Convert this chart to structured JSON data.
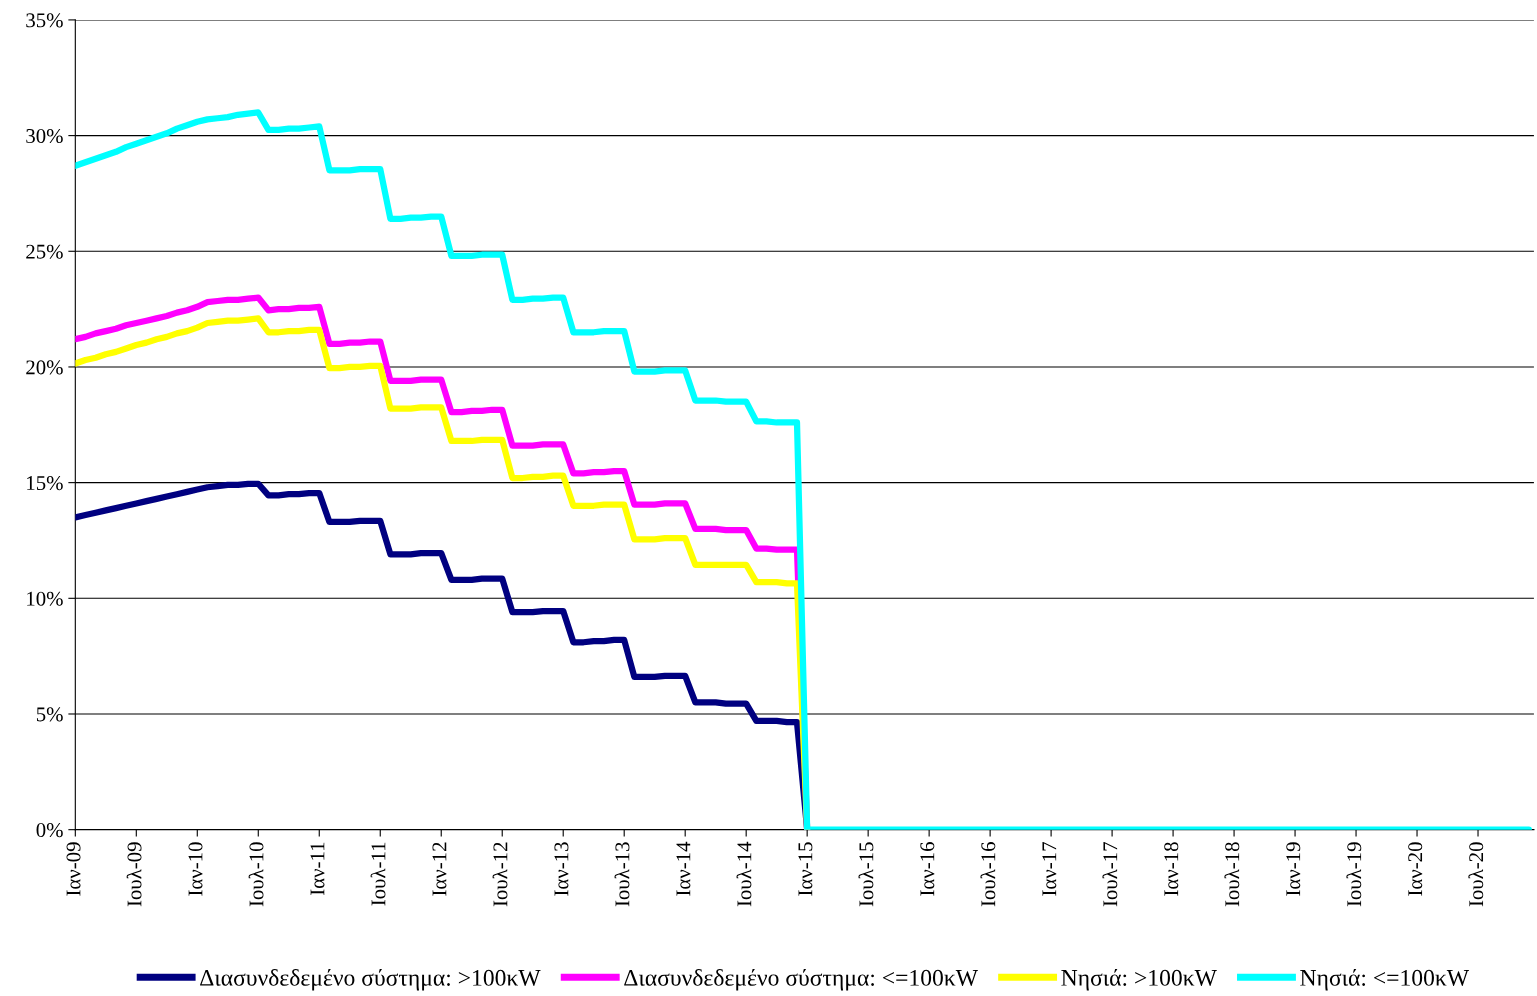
{
  "chart_data": {
    "type": "line",
    "categories": [
      "Ιαν-09",
      null,
      null,
      null,
      null,
      null,
      "Ιουλ-09",
      null,
      null,
      null,
      null,
      null,
      "Ιαν-10",
      null,
      null,
      null,
      null,
      null,
      "Ιουλ-10",
      null,
      null,
      null,
      null,
      null,
      "Ιαν-11",
      null,
      null,
      null,
      null,
      null,
      "Ιουλ-11",
      null,
      null,
      null,
      null,
      null,
      "Ιαν-12",
      null,
      null,
      null,
      null,
      null,
      "Ιουλ-12",
      null,
      null,
      null,
      null,
      null,
      "Ιαν-13",
      null,
      null,
      null,
      null,
      null,
      "Ιουλ-13",
      null,
      null,
      null,
      null,
      null,
      "Ιαν-14",
      null,
      null,
      null,
      null,
      null,
      "Ιουλ-14",
      null,
      null,
      null,
      null,
      null,
      "Ιαν-15",
      null,
      null,
      null,
      null,
      null,
      "Ιουλ-15",
      null,
      null,
      null,
      null,
      null,
      "Ιαν-16",
      null,
      null,
      null,
      null,
      null,
      "Ιουλ-16",
      null,
      null,
      null,
      null,
      null,
      "Ιαν-17",
      null,
      null,
      null,
      null,
      null,
      "Ιουλ-17",
      null,
      null,
      null,
      null,
      null,
      "Ιαν-18",
      null,
      null,
      null,
      null,
      null,
      "Ιουλ-18",
      null,
      null,
      null,
      null,
      null,
      "Ιαν-19",
      null,
      null,
      null,
      null,
      null,
      "Ιουλ-19",
      null,
      null,
      null,
      null,
      null,
      "Ιαν-20",
      null,
      null,
      null,
      null,
      null,
      "Ιουλ-20",
      null,
      null,
      null,
      null,
      null
    ],
    "ylim": [
      0,
      35
    ],
    "yticks": [
      {
        "value": 0,
        "label": "0%"
      },
      {
        "value": 5,
        "label": "5%"
      },
      {
        "value": 10,
        "label": "10%"
      },
      {
        "value": 15,
        "label": "15%"
      },
      {
        "value": 20,
        "label": "20%"
      },
      {
        "value": 25,
        "label": "25%"
      },
      {
        "value": 30,
        "label": "30%"
      },
      {
        "value": 35,
        "label": "35%"
      }
    ],
    "grid": "y",
    "legend": "bottom",
    "marker": "none",
    "line_style": "solid",
    "series": [
      {
        "name": "Διασυνδεδεμένο σύστημα: >100κW",
        "color": "#000080",
        "values": [
          13.5,
          13.6,
          13.7,
          13.8,
          13.9,
          14.0,
          14.1,
          14.2,
          14.3,
          14.4,
          14.5,
          14.6,
          14.7,
          14.8,
          14.85,
          14.9,
          14.9,
          14.95,
          14.95,
          14.45,
          14.45,
          14.5,
          14.5,
          14.55,
          14.55,
          13.3,
          13.3,
          13.3,
          13.35,
          13.35,
          13.35,
          11.9,
          11.9,
          11.9,
          11.95,
          11.95,
          11.95,
          10.8,
          10.8,
          10.8,
          10.85,
          10.85,
          10.85,
          9.4,
          9.4,
          9.4,
          9.45,
          9.45,
          9.45,
          8.1,
          8.1,
          8.15,
          8.15,
          8.2,
          8.2,
          6.6,
          6.6,
          6.6,
          6.65,
          6.65,
          6.65,
          5.5,
          5.5,
          5.5,
          5.45,
          5.45,
          5.45,
          4.7,
          4.7,
          4.7,
          4.65,
          4.65,
          0,
          null,
          null,
          null,
          null,
          null,
          null,
          null,
          null,
          null,
          null,
          null,
          null,
          null,
          null,
          null,
          null,
          null,
          null,
          null,
          null,
          null,
          null,
          null,
          null,
          null,
          null,
          null,
          null,
          null,
          null,
          null,
          null,
          null,
          null,
          null,
          null,
          null,
          null,
          null,
          null,
          null,
          null,
          null,
          null,
          null,
          null,
          null,
          null,
          null,
          null,
          null,
          null,
          null,
          null,
          null,
          null,
          null,
          null,
          null,
          null,
          null,
          null,
          null,
          null,
          null,
          null,
          null,
          null,
          null,
          null,
          null
        ]
      },
      {
        "name": "Διασυνδεδεμένο σύστημα: <=100κW",
        "color": "#ff00ff",
        "values": [
          21.2,
          21.3,
          21.45,
          21.55,
          21.65,
          21.8,
          21.9,
          22.0,
          22.1,
          22.2,
          22.35,
          22.45,
          22.6,
          22.8,
          22.85,
          22.9,
          22.9,
          22.95,
          23.0,
          22.45,
          22.5,
          22.5,
          22.55,
          22.55,
          22.6,
          21.0,
          21.0,
          21.05,
          21.05,
          21.1,
          21.1,
          19.4,
          19.4,
          19.4,
          19.45,
          19.45,
          19.45,
          18.05,
          18.05,
          18.1,
          18.1,
          18.15,
          18.15,
          16.6,
          16.6,
          16.6,
          16.65,
          16.65,
          16.65,
          15.4,
          15.4,
          15.45,
          15.45,
          15.5,
          15.5,
          14.05,
          14.05,
          14.05,
          14.1,
          14.1,
          14.1,
          13.0,
          13.0,
          13.0,
          12.95,
          12.95,
          12.95,
          12.15,
          12.15,
          12.1,
          12.1,
          12.1,
          0,
          null,
          null,
          null,
          null,
          null,
          null,
          null,
          null,
          null,
          null,
          null,
          null,
          null,
          null,
          null,
          null,
          null,
          null,
          null,
          null,
          null,
          null,
          null,
          null,
          null,
          null,
          null,
          null,
          null,
          null,
          null,
          null,
          null,
          null,
          null,
          null,
          null,
          null,
          null,
          null,
          null,
          null,
          null,
          null,
          null,
          null,
          null,
          null,
          null,
          null,
          null,
          null,
          null,
          null,
          null,
          null,
          null,
          null,
          null,
          null,
          null,
          null,
          null,
          null,
          null,
          null,
          null,
          null,
          null,
          null,
          null
        ]
      },
      {
        "name": "Νησιά: >100κW",
        "color": "#ffff00",
        "values": [
          20.15,
          20.3,
          20.4,
          20.55,
          20.65,
          20.8,
          20.95,
          21.05,
          21.2,
          21.3,
          21.45,
          21.55,
          21.7,
          21.9,
          21.95,
          22.0,
          22.0,
          22.05,
          22.1,
          21.5,
          21.5,
          21.55,
          21.55,
          21.6,
          21.6,
          19.95,
          19.95,
          20.0,
          20.0,
          20.05,
          20.05,
          18.2,
          18.2,
          18.2,
          18.25,
          18.25,
          18.25,
          16.8,
          16.8,
          16.8,
          16.85,
          16.85,
          16.85,
          15.2,
          15.2,
          15.25,
          15.25,
          15.3,
          15.3,
          14.0,
          14.0,
          14.0,
          14.05,
          14.05,
          14.05,
          12.55,
          12.55,
          12.55,
          12.6,
          12.6,
          12.6,
          11.45,
          11.45,
          11.45,
          11.45,
          11.45,
          11.45,
          10.7,
          10.7,
          10.7,
          10.65,
          10.65,
          0,
          null,
          null,
          null,
          null,
          null,
          null,
          null,
          null,
          null,
          null,
          null,
          null,
          null,
          null,
          null,
          null,
          null,
          null,
          null,
          null,
          null,
          null,
          null,
          null,
          null,
          null,
          null,
          null,
          null,
          null,
          null,
          null,
          null,
          null,
          null,
          null,
          null,
          null,
          null,
          null,
          null,
          null,
          null,
          null,
          null,
          null,
          null,
          null,
          null,
          null,
          null,
          null,
          null,
          null,
          null,
          null,
          null,
          null,
          null,
          null,
          null,
          null,
          null,
          null,
          null,
          null,
          null,
          null,
          null,
          null,
          null
        ]
      },
      {
        "name": "Νησιά: <=100κW",
        "color": "#00ffff",
        "values": [
          28.7,
          28.85,
          29.0,
          29.15,
          29.3,
          29.5,
          29.65,
          29.8,
          29.95,
          30.1,
          30.3,
          30.45,
          30.6,
          30.7,
          30.75,
          30.8,
          30.9,
          30.95,
          31.0,
          30.25,
          30.25,
          30.3,
          30.3,
          30.35,
          30.4,
          28.5,
          28.5,
          28.5,
          28.55,
          28.55,
          28.55,
          26.4,
          26.4,
          26.45,
          26.45,
          26.5,
          26.5,
          24.8,
          24.8,
          24.8,
          24.85,
          24.85,
          24.85,
          22.9,
          22.9,
          22.95,
          22.95,
          23.0,
          23.0,
          21.5,
          21.5,
          21.5,
          21.55,
          21.55,
          21.55,
          19.8,
          19.8,
          19.8,
          19.85,
          19.85,
          19.85,
          18.55,
          18.55,
          18.55,
          18.5,
          18.5,
          18.5,
          17.65,
          17.65,
          17.6,
          17.6,
          17.6,
          0,
          0,
          0,
          0,
          0,
          0,
          0,
          0,
          0,
          0,
          0,
          0,
          0,
          0,
          0,
          0,
          0,
          0,
          0,
          0,
          0,
          0,
          0,
          0,
          0,
          0,
          0,
          0,
          0,
          0,
          0,
          0,
          0,
          0,
          0,
          0,
          0,
          0,
          0,
          0,
          0,
          0,
          0,
          0,
          0,
          0,
          0,
          0,
          0,
          0,
          0,
          0,
          0,
          0,
          0,
          0,
          0,
          0,
          0,
          0,
          0,
          0,
          0,
          0,
          0,
          0,
          0,
          0,
          0,
          0,
          0,
          0
        ]
      }
    ]
  }
}
